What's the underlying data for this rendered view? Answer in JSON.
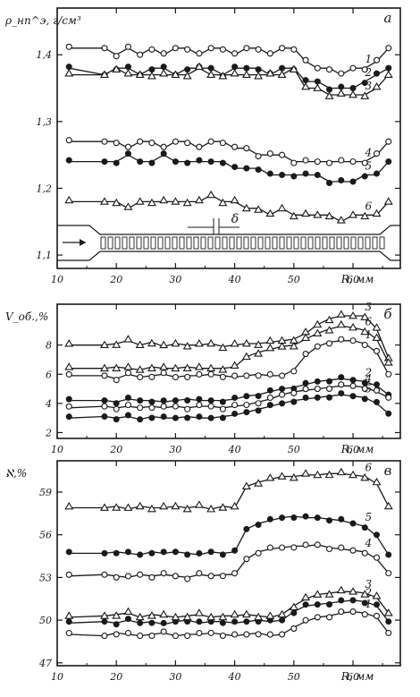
{
  "chart_data": [
    {
      "type": "scatter",
      "panel_label": "а",
      "ylabel": "ρ_нп^э, г/см³",
      "xlabel": "R, мм",
      "xlim": [
        10,
        68
      ],
      "ylim": [
        1.08,
        1.47
      ],
      "x_ticks": [
        "10",
        "20",
        "30",
        "40",
        "50",
        "60"
      ],
      "y_ticks": [
        "1,1",
        "1,2",
        "1,3",
        "1,4"
      ],
      "y_tick_values": [
        1.1,
        1.2,
        1.3,
        1.4
      ],
      "annotation": "δ",
      "grid": false,
      "series": [
        {
          "name": "1",
          "marker": "open-circle",
          "x": [
            12,
            18,
            20,
            22,
            24,
            26,
            28,
            30,
            32,
            34,
            36,
            38,
            40,
            42,
            44,
            46,
            48,
            50,
            52,
            54,
            56,
            58,
            60,
            62,
            64,
            66
          ],
          "y": [
            1.41,
            1.41,
            1.4,
            1.41,
            1.4,
            1.41,
            1.4,
            1.41,
            1.41,
            1.4,
            1.41,
            1.41,
            1.4,
            1.41,
            1.41,
            1.4,
            1.41,
            1.41,
            1.39,
            1.38,
            1.38,
            1.37,
            1.38,
            1.38,
            1.39,
            1.41
          ]
        },
        {
          "name": "2",
          "marker": "filled-circle",
          "x": [
            12,
            18,
            20,
            22,
            24,
            26,
            28,
            30,
            32,
            34,
            36,
            38,
            40,
            42,
            44,
            46,
            48,
            50,
            52,
            54,
            56,
            58,
            60,
            62,
            64,
            66
          ],
          "y": [
            1.38,
            1.37,
            1.38,
            1.38,
            1.37,
            1.38,
            1.38,
            1.37,
            1.38,
            1.38,
            1.38,
            1.37,
            1.38,
            1.38,
            1.38,
            1.37,
            1.38,
            1.38,
            1.36,
            1.36,
            1.35,
            1.35,
            1.35,
            1.36,
            1.37,
            1.38
          ]
        },
        {
          "name": "3",
          "marker": "open-triangle",
          "x": [
            12,
            18,
            20,
            22,
            24,
            26,
            28,
            30,
            32,
            34,
            36,
            38,
            40,
            42,
            44,
            46,
            48,
            50,
            52,
            54,
            56,
            58,
            60,
            62,
            64,
            66
          ],
          "y": [
            1.37,
            1.37,
            1.38,
            1.37,
            1.37,
            1.37,
            1.37,
            1.37,
            1.37,
            1.38,
            1.37,
            1.37,
            1.37,
            1.37,
            1.37,
            1.37,
            1.37,
            1.38,
            1.35,
            1.35,
            1.34,
            1.34,
            1.34,
            1.34,
            1.35,
            1.37
          ]
        },
        {
          "name": "4",
          "marker": "open-circle",
          "x": [
            12,
            18,
            20,
            22,
            24,
            26,
            28,
            30,
            32,
            34,
            36,
            38,
            40,
            42,
            44,
            46,
            48,
            50,
            52,
            54,
            56,
            58,
            60,
            62,
            64,
            66
          ],
          "y": [
            1.27,
            1.27,
            1.27,
            1.26,
            1.27,
            1.27,
            1.26,
            1.27,
            1.27,
            1.26,
            1.27,
            1.27,
            1.26,
            1.26,
            1.25,
            1.25,
            1.25,
            1.24,
            1.24,
            1.24,
            1.24,
            1.24,
            1.24,
            1.24,
            1.25,
            1.27
          ]
        },
        {
          "name": "5",
          "marker": "filled-circle",
          "x": [
            12,
            18,
            20,
            22,
            24,
            26,
            28,
            30,
            32,
            34,
            36,
            38,
            40,
            42,
            44,
            46,
            48,
            50,
            52,
            54,
            56,
            58,
            60,
            62,
            64,
            66
          ],
          "y": [
            1.24,
            1.24,
            1.24,
            1.25,
            1.24,
            1.24,
            1.25,
            1.24,
            1.24,
            1.24,
            1.24,
            1.24,
            1.23,
            1.23,
            1.23,
            1.22,
            1.22,
            1.22,
            1.22,
            1.22,
            1.21,
            1.21,
            1.21,
            1.22,
            1.22,
            1.24
          ]
        },
        {
          "name": "6",
          "marker": "open-triangle",
          "x": [
            12,
            18,
            20,
            22,
            24,
            26,
            28,
            30,
            32,
            34,
            36,
            38,
            40,
            42,
            44,
            46,
            48,
            50,
            52,
            54,
            56,
            58,
            60,
            62,
            64,
            66
          ],
          "y": [
            1.18,
            1.18,
            1.18,
            1.17,
            1.18,
            1.18,
            1.18,
            1.18,
            1.18,
            1.18,
            1.19,
            1.18,
            1.18,
            1.17,
            1.17,
            1.16,
            1.17,
            1.16,
            1.16,
            1.16,
            1.16,
            1.15,
            1.16,
            1.16,
            1.16,
            1.18
          ]
        }
      ]
    },
    {
      "type": "scatter",
      "panel_label": "б",
      "ylabel": "V_об.,%",
      "xlabel": "R, мм",
      "xlim": [
        10,
        68
      ],
      "ylim": [
        1.6,
        10.8
      ],
      "x_ticks": [
        "10",
        "20",
        "30",
        "40",
        "50",
        "60"
      ],
      "y_ticks": [
        "2",
        "4",
        "6",
        "8"
      ],
      "y_tick_values": [
        2,
        4,
        6,
        8
      ],
      "grid": false,
      "series": [
        {
          "name": "1",
          "marker": "open-circle",
          "x": [
            12,
            18,
            20,
            22,
            24,
            26,
            28,
            30,
            32,
            34,
            36,
            38,
            40,
            42,
            44,
            46,
            48,
            50,
            52,
            54,
            56,
            58,
            60,
            62,
            64,
            66
          ],
          "y": [
            5.9,
            5.9,
            5.7,
            6.0,
            5.8,
            5.9,
            6.0,
            5.8,
            5.9,
            5.9,
            6.0,
            5.9,
            5.8,
            5.9,
            6.0,
            5.9,
            5.9,
            6.3,
            7.3,
            7.9,
            8.2,
            8.3,
            8.3,
            8.1,
            7.5,
            6.0
          ]
        },
        {
          "name": "2",
          "marker": "filled-circle",
          "x": [
            12,
            18,
            20,
            22,
            24,
            26,
            28,
            30,
            32,
            34,
            36,
            38,
            40,
            42,
            44,
            46,
            48,
            50,
            52,
            54,
            56,
            58,
            60,
            62,
            64,
            66
          ],
          "y": [
            4.2,
            4.2,
            4.1,
            4.3,
            4.2,
            4.2,
            4.1,
            4.2,
            4.3,
            4.2,
            4.2,
            4.2,
            4.3,
            4.5,
            4.6,
            4.8,
            5.0,
            5.1,
            5.3,
            5.5,
            5.6,
            5.7,
            5.6,
            5.5,
            5.2,
            4.6
          ]
        },
        {
          "name": "3",
          "marker": "open-triangle",
          "x": [
            12,
            18,
            20,
            22,
            24,
            26,
            28,
            30,
            32,
            34,
            36,
            38,
            40,
            42,
            44,
            46,
            48,
            50,
            52,
            54,
            56,
            58,
            60,
            62,
            64,
            66
          ],
          "y": [
            8.0,
            8.0,
            8.1,
            8.3,
            8.0,
            8.2,
            7.9,
            8.1,
            8.0,
            8.0,
            8.1,
            7.9,
            8.0,
            8.1,
            8.1,
            8.2,
            8.3,
            8.4,
            8.8,
            9.4,
            9.8,
            10.0,
            10.0,
            10.0,
            9.1,
            7.1
          ]
        },
        {
          "name": "4",
          "marker": "open-circle",
          "x": [
            12,
            18,
            20,
            22,
            24,
            26,
            28,
            30,
            32,
            34,
            36,
            38,
            40,
            42,
            44,
            46,
            48,
            50,
            52,
            54,
            56,
            58,
            60,
            62,
            64,
            66
          ],
          "y": [
            3.7,
            3.8,
            3.7,
            3.8,
            3.7,
            3.8,
            3.7,
            3.8,
            3.7,
            3.8,
            3.8,
            3.7,
            3.8,
            3.9,
            4.1,
            4.3,
            4.6,
            4.8,
            4.9,
            5.0,
            5.1,
            5.2,
            5.2,
            5.1,
            4.8,
            4.4
          ]
        },
        {
          "name": "5",
          "marker": "filled-circle",
          "x": [
            12,
            18,
            20,
            22,
            24,
            26,
            28,
            30,
            32,
            34,
            36,
            38,
            40,
            42,
            44,
            46,
            48,
            50,
            52,
            54,
            56,
            58,
            60,
            62,
            64,
            66
          ],
          "y": [
            3.0,
            3.1,
            3.0,
            3.1,
            2.9,
            3.1,
            3.0,
            3.0,
            3.1,
            3.0,
            3.0,
            3.1,
            3.2,
            3.4,
            3.6,
            3.8,
            4.0,
            4.2,
            4.3,
            4.4,
            4.5,
            4.6,
            4.5,
            4.4,
            4.0,
            3.3
          ]
        },
        {
          "name": "6",
          "marker": "open-triangle",
          "x": [
            12,
            18,
            20,
            22,
            24,
            26,
            28,
            30,
            32,
            34,
            36,
            38,
            40,
            42,
            44,
            46,
            48,
            50,
            52,
            54,
            56,
            58,
            60,
            62,
            64,
            66
          ],
          "y": [
            6.4,
            6.4,
            6.5,
            6.4,
            6.3,
            6.5,
            6.4,
            6.4,
            6.5,
            6.4,
            6.4,
            6.4,
            6.5,
            7.2,
            7.5,
            7.7,
            7.9,
            8.0,
            8.4,
            8.8,
            9.1,
            9.3,
            9.2,
            9.0,
            8.4,
            6.8
          ]
        }
      ]
    },
    {
      "type": "scatter",
      "panel_label": "в",
      "ylabel": "ℵ,%",
      "xlabel": "R, мм",
      "xlim": [
        10,
        68
      ],
      "ylim": [
        46.8,
        61.2
      ],
      "x_ticks": [
        "10",
        "20",
        "30",
        "40",
        "50",
        "60"
      ],
      "y_ticks": [
        "47",
        "50",
        "53",
        "56",
        "59"
      ],
      "y_tick_values": [
        47,
        50,
        53,
        56,
        59
      ],
      "grid": false,
      "series": [
        {
          "name": "1",
          "marker": "open-circle",
          "x": [
            12,
            18,
            20,
            22,
            24,
            26,
            28,
            30,
            32,
            34,
            36,
            38,
            40,
            42,
            44,
            46,
            48,
            50,
            52,
            54,
            56,
            58,
            60,
            62,
            64,
            66
          ],
          "y": [
            49.0,
            48.9,
            49.1,
            49.0,
            48.9,
            49.0,
            49.1,
            48.9,
            49.0,
            49.0,
            49.1,
            49.0,
            48.9,
            49.0,
            49.1,
            48.9,
            49.0,
            49.5,
            49.9,
            50.2,
            50.3,
            50.5,
            50.6,
            50.5,
            50.2,
            49.1
          ]
        },
        {
          "name": "2",
          "marker": "filled-circle",
          "x": [
            12,
            18,
            20,
            22,
            24,
            26,
            28,
            30,
            32,
            34,
            36,
            38,
            40,
            42,
            44,
            46,
            48,
            50,
            52,
            54,
            56,
            58,
            60,
            62,
            64,
            66
          ],
          "y": [
            49.8,
            49.9,
            49.8,
            50.0,
            49.8,
            49.9,
            49.7,
            49.9,
            50.0,
            49.8,
            49.9,
            49.9,
            49.8,
            49.9,
            50.0,
            49.9,
            50.0,
            50.6,
            51.0,
            51.1,
            51.2,
            51.3,
            51.4,
            51.3,
            51.0,
            49.9
          ]
        },
        {
          "name": "3",
          "marker": "open-triangle",
          "x": [
            12,
            18,
            20,
            22,
            24,
            26,
            28,
            30,
            32,
            34,
            36,
            38,
            40,
            42,
            44,
            46,
            48,
            50,
            52,
            54,
            56,
            58,
            60,
            62,
            64,
            66
          ],
          "y": [
            50.2,
            50.3,
            50.4,
            50.5,
            50.2,
            50.4,
            50.3,
            50.2,
            50.3,
            50.4,
            50.2,
            50.3,
            50.3,
            50.4,
            50.3,
            50.2,
            50.4,
            51.0,
            51.5,
            51.8,
            51.9,
            52.0,
            52.0,
            51.9,
            51.6,
            50.5
          ]
        },
        {
          "name": "4",
          "marker": "open-circle",
          "x": [
            12,
            18,
            20,
            22,
            24,
            26,
            28,
            30,
            32,
            34,
            36,
            38,
            40,
            42,
            44,
            46,
            48,
            50,
            52,
            54,
            56,
            58,
            60,
            62,
            64,
            66
          ],
          "y": [
            53.1,
            53.2,
            53.1,
            53.0,
            53.2,
            53.1,
            53.2,
            53.1,
            53.0,
            53.2,
            53.1,
            53.2,
            53.2,
            54.3,
            54.8,
            55.0,
            55.1,
            55.2,
            55.2,
            55.3,
            55.1,
            55.0,
            54.9,
            54.8,
            54.3,
            53.3
          ]
        },
        {
          "name": "5",
          "marker": "filled-circle",
          "x": [
            12,
            18,
            20,
            22,
            24,
            26,
            28,
            30,
            32,
            34,
            36,
            38,
            40,
            42,
            44,
            46,
            48,
            50,
            52,
            54,
            56,
            58,
            60,
            62,
            64,
            66
          ],
          "y": [
            54.7,
            54.7,
            54.8,
            54.7,
            54.6,
            54.8,
            54.7,
            54.8,
            54.7,
            54.6,
            54.8,
            54.7,
            54.8,
            56.4,
            56.8,
            57.0,
            57.2,
            57.3,
            57.2,
            57.2,
            57.1,
            57.0,
            56.8,
            56.6,
            55.9,
            54.6
          ]
        },
        {
          "name": "6",
          "marker": "open-triangle",
          "x": [
            12,
            18,
            20,
            22,
            24,
            26,
            28,
            30,
            32,
            34,
            36,
            38,
            40,
            42,
            44,
            46,
            48,
            50,
            52,
            54,
            56,
            58,
            60,
            62,
            64,
            66
          ],
          "y": [
            57.9,
            57.9,
            58.0,
            57.8,
            58.0,
            57.9,
            57.9,
            58.0,
            57.9,
            58.0,
            57.8,
            58.0,
            57.9,
            59.4,
            59.7,
            59.9,
            60.1,
            60.1,
            60.2,
            60.2,
            60.3,
            60.3,
            60.2,
            60.1,
            59.6,
            58.0
          ]
        }
      ]
    }
  ]
}
